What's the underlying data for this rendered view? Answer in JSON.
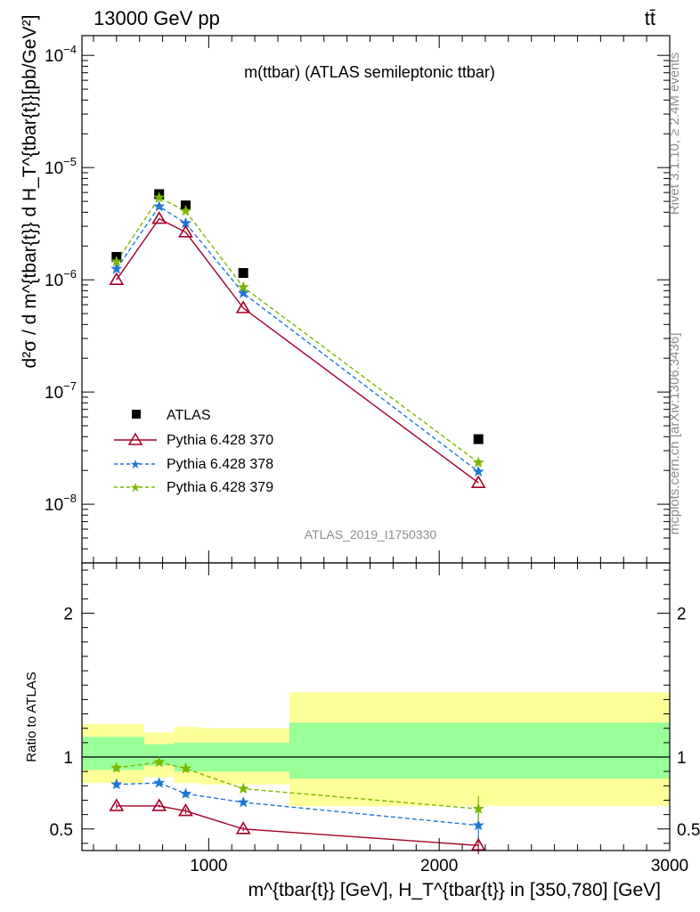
{
  "header": {
    "beam": "13000 GeV pp",
    "process": "tt̄"
  },
  "side_labels": {
    "rivet": "Rivet 3.1.10, ≥ 2.4M events",
    "mcplots": "mcplots.cern.ch [arXiv:1306.3436]"
  },
  "colors": {
    "atlas": "#000000",
    "p370": "#a50026",
    "p378": "#1f78d6",
    "p379": "#7ab800",
    "band_inner": "#99ff99",
    "band_outer": "#ffff99"
  },
  "chart_data": [
    {
      "type": "scatter",
      "panel": "main",
      "title": "m(ttbar) (ATLAS semileptonic ttbar)",
      "watermark": "ATLAS_2019_I1750330",
      "ylabel": "d²σ / d m^{tbar{t}} d H_T^{tbar{t}}[pb/GeV²]",
      "yscale": "log",
      "xlim": [
        450,
        3000
      ],
      "ylim": [
        3e-09,
        0.00015
      ],
      "y_ticks": [
        "10^{-8}",
        "10^{-7}",
        "10^{-6}",
        "10^{-5}",
        "10^{-4}"
      ],
      "legend": [
        "ATLAS",
        "Pythia 6.428 370",
        "Pythia 6.428 378",
        "Pythia 6.428 379"
      ],
      "series": [
        {
          "name": "ATLAS",
          "style": "marker-square",
          "x": [
            600,
            785,
            900,
            1150,
            2170
          ],
          "y": [
            1.6e-06,
            5.8e-06,
            4.6e-06,
            1.15e-06,
            3.8e-08
          ]
        },
        {
          "name": "Pythia 6.428 370",
          "style": "solid-triangle",
          "x": [
            600,
            785,
            900,
            1150,
            2170
          ],
          "y": [
            1e-06,
            3.5e-06,
            2.65e-06,
            5.6e-07,
            1.55e-08
          ]
        },
        {
          "name": "Pythia 6.428 378",
          "style": "dashed-star",
          "x": [
            600,
            785,
            900,
            1150,
            2170
          ],
          "y": [
            1.25e-06,
            4.5e-06,
            3.2e-06,
            7.6e-07,
            1.95e-08
          ]
        },
        {
          "name": "Pythia 6.428 379",
          "style": "dashed-star",
          "x": [
            600,
            785,
            900,
            1150,
            2170
          ],
          "y": [
            1.45e-06,
            5.4e-06,
            4.1e-06,
            8.6e-07,
            2.35e-08
          ]
        }
      ]
    },
    {
      "type": "line",
      "panel": "ratio",
      "ylabel": "Ratio to ATLAS",
      "xlabel": "m^{tbar{t}} [GeV], H_T^{tbar{t}} in [350,780] [GeV]",
      "xlim": [
        450,
        3000
      ],
      "ylim": [
        0.35,
        2.35
      ],
      "x_ticks": [
        "1000",
        "2000",
        "3000"
      ],
      "y_ticks": [
        "0.5",
        "1",
        "2"
      ],
      "bands": [
        {
          "xlo": 450,
          "xhi": 720,
          "inner": [
            0.91,
            1.14
          ],
          "outer": [
            0.82,
            1.23
          ]
        },
        {
          "xlo": 720,
          "xhi": 850,
          "inner": [
            0.94,
            1.09
          ],
          "outer": [
            0.86,
            1.17
          ]
        },
        {
          "xlo": 850,
          "xhi": 960,
          "inner": [
            0.9,
            1.1
          ],
          "outer": [
            0.82,
            1.21
          ]
        },
        {
          "xlo": 960,
          "xhi": 1350,
          "inner": [
            0.9,
            1.1
          ],
          "outer": [
            0.81,
            1.2
          ]
        },
        {
          "xlo": 1350,
          "xhi": 3000,
          "inner": [
            0.85,
            1.24
          ],
          "outer": [
            0.66,
            1.45
          ]
        }
      ],
      "series": [
        {
          "name": "Pythia 6.428 370",
          "style": "solid-triangle",
          "x": [
            600,
            785,
            900,
            1150,
            2170
          ],
          "y": [
            0.66,
            0.66,
            0.625,
            0.5,
            0.385
          ],
          "err": [
            0.02,
            0.01,
            0.02,
            0.015,
            0.06
          ]
        },
        {
          "name": "Pythia 6.428 378",
          "style": "dashed-star",
          "x": [
            600,
            785,
            900,
            1150,
            2170
          ],
          "y": [
            0.81,
            0.82,
            0.745,
            0.685,
            0.525
          ],
          "err": [
            0.025,
            0.015,
            0.025,
            0.02,
            0.09
          ]
        },
        {
          "name": "Pythia 6.428 379",
          "style": "dashed-star",
          "x": [
            600,
            785,
            900,
            1150,
            2170
          ],
          "y": [
            0.925,
            0.965,
            0.92,
            0.78,
            0.64
          ],
          "err": [
            0.025,
            0.015,
            0.025,
            0.02,
            0.09
          ]
        }
      ]
    }
  ]
}
